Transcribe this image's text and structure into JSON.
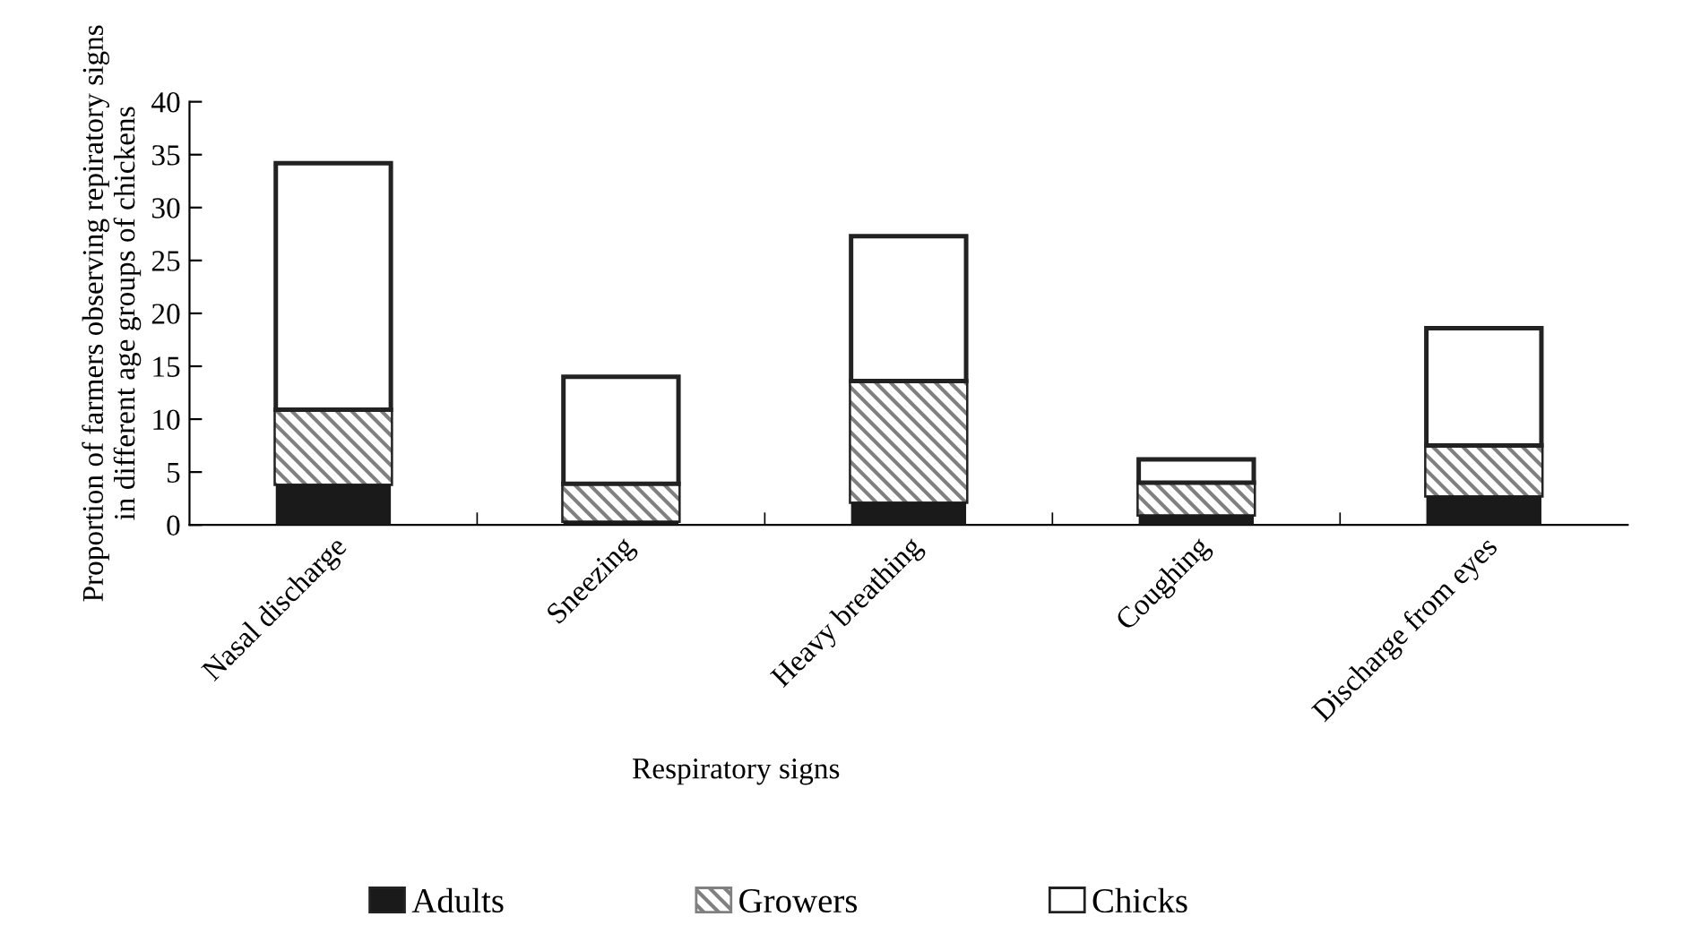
{
  "chart_data": {
    "type": "bar",
    "stacked": true,
    "xlabel": "Respiratory signs",
    "ylabel": "Proportion of farmers observing repiratory signs\nin different age groups of chickens",
    "categories": [
      "Nasal discharge",
      "Sneezing",
      "Heavy breathing",
      "Coughing",
      "Discharge from eyes"
    ],
    "series": [
      {
        "name": "Adults",
        "color": "#1a1a1a",
        "values": [
          3.9,
          0.4,
          2.2,
          1.0,
          2.8
        ]
      },
      {
        "name": "Growers",
        "color": "#808080",
        "values": [
          7.0,
          3.5,
          11.4,
          3.0,
          4.7
        ]
      },
      {
        "name": "Chicks",
        "color": "#ffffff",
        "values": [
          23.3,
          10.1,
          13.7,
          2.2,
          11.1
        ]
      }
    ],
    "ylim": [
      0,
      40
    ],
    "yticks": [
      0,
      5,
      10,
      15,
      20,
      25,
      30,
      35,
      40
    ],
    "grid": false,
    "legend": "bottom"
  }
}
